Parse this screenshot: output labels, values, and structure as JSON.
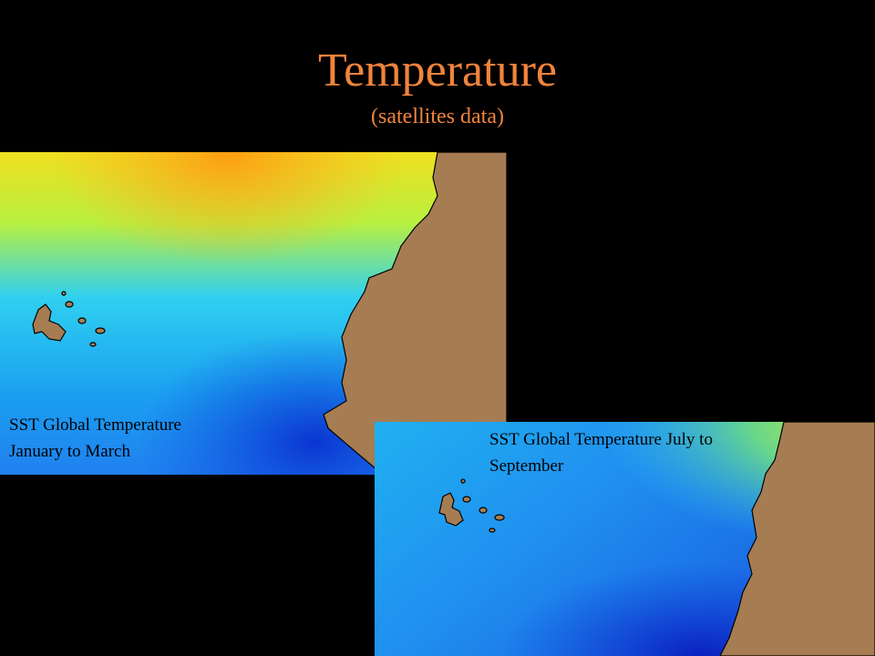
{
  "header": {
    "title": "Temperature",
    "subtitle": "(satellites data)"
  },
  "maps": [
    {
      "caption": [
        "SST Global Temperature",
        "January to March"
      ]
    },
    {
      "caption": [
        "SST Global Temperature July to",
        "September"
      ]
    }
  ]
}
